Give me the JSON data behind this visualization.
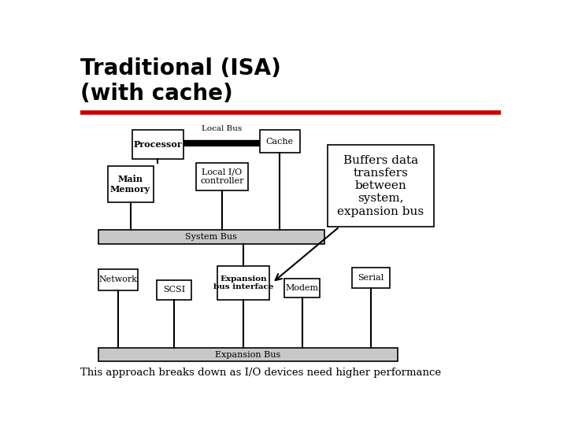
{
  "title_line1": "Traditional (ISA)",
  "title_line2": "(with cache)",
  "title_fontsize": 20,
  "callout_text": "Buffers data\ntransfers\nbetween\nsystem,\nexpansion bus",
  "bottom_text": "This approach breaks down as I/O devices need higher performance",
  "bg_color": "#ffffff",
  "box_facecolor": "#ffffff",
  "box_edgecolor": "#000000",
  "bus_facecolor": "#c8c8c8",
  "bus_edgecolor": "#000000",
  "line_color": "#000000",
  "red_line_color": "#cc0000",
  "proc": [
    100,
    130,
    85,
    48
  ],
  "cache": [
    310,
    130,
    65,
    38
  ],
  "local_io": [
    205,
    185,
    85,
    45
  ],
  "main_mem": [
    60,
    190,
    75,
    60
  ],
  "system_bus": [
    45,
    295,
    370,
    24
  ],
  "exp_bus": [
    45,
    490,
    490,
    22
  ],
  "network": [
    45,
    360,
    65,
    35
  ],
  "scsi": [
    140,
    378,
    58,
    32
  ],
  "ebi": [
    240,
    355,
    85,
    55
  ],
  "modem": [
    350,
    375,
    58,
    32
  ],
  "serial": [
    460,
    358,
    62,
    33
  ],
  "callout": [
    420,
    155,
    175,
    135
  ]
}
